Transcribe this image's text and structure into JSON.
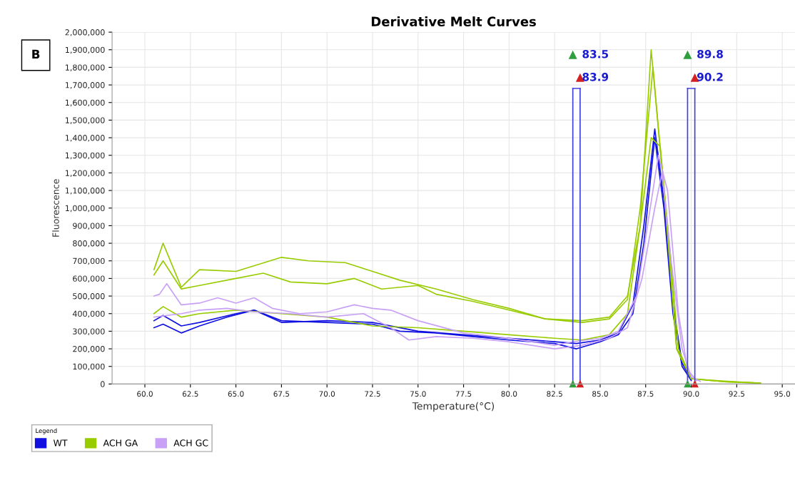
{
  "chart_data": {
    "type": "line",
    "title": "Derivative Melt Curves",
    "xlabel": "Temperature(°C)",
    "ylabel": "Fluorescence",
    "legend_title": "Legend",
    "annotations": [
      "B"
    ],
    "xlim": [
      58.2,
      95.7
    ],
    "xticks": [
      {
        "value": 60,
        "label": "60.0"
      },
      {
        "value": 62.5,
        "label": "62.5"
      },
      {
        "value": 65,
        "label": "65.0"
      },
      {
        "value": 67.5,
        "label": "67.5"
      },
      {
        "value": 70,
        "label": "70.0"
      },
      {
        "value": 72.5,
        "label": "72.5"
      },
      {
        "value": 75,
        "label": "75.0"
      },
      {
        "value": 77.5,
        "label": "77.5"
      },
      {
        "value": 80,
        "label": "80.0"
      },
      {
        "value": 82.5,
        "label": "82.5"
      },
      {
        "value": 85,
        "label": "85.0"
      },
      {
        "value": 87.5,
        "label": "87.5"
      },
      {
        "value": 90,
        "label": "90.0"
      },
      {
        "value": 92.5,
        "label": "92.5"
      },
      {
        "value": 95,
        "label": "95.0"
      }
    ],
    "ylim": [
      0,
      2000000
    ],
    "yticks": [
      {
        "value": 0,
        "label": "0"
      },
      {
        "value": 100000,
        "label": "100,000"
      },
      {
        "value": 200000,
        "label": "200,000"
      },
      {
        "value": 300000,
        "label": "300,000"
      },
      {
        "value": 400000,
        "label": "400,000"
      },
      {
        "value": 500000,
        "label": "500,000"
      },
      {
        "value": 600000,
        "label": "600,000"
      },
      {
        "value": 700000,
        "label": "700,000"
      },
      {
        "value": 800000,
        "label": "800,000"
      },
      {
        "value": 900000,
        "label": "900,000"
      },
      {
        "value": 1000000,
        "label": "1,000,000"
      },
      {
        "value": 1100000,
        "label": "1,100,000"
      },
      {
        "value": 1200000,
        "label": "1,200,000"
      },
      {
        "value": 1300000,
        "label": "1,300,000"
      },
      {
        "value": 1400000,
        "label": "1,400,000"
      },
      {
        "value": 1500000,
        "label": "1,500,000"
      },
      {
        "value": 1600000,
        "label": "1,600,000"
      },
      {
        "value": 1700000,
        "label": "1,700,000"
      },
      {
        "value": 1800000,
        "label": "1,800,000"
      },
      {
        "value": 1900000,
        "label": "1,900,000"
      },
      {
        "value": 2000000,
        "label": "2,000,000"
      }
    ],
    "grid": true,
    "legend": "bottom",
    "ref_lines": [
      {
        "axis": "x",
        "value": 83.5,
        "label": "83.5",
        "color": "#4040e0"
      },
      {
        "axis": "x",
        "value": 83.9,
        "label": "83.9",
        "color": "#4040e0"
      },
      {
        "axis": "x",
        "value": 89.8,
        "label": "89.8",
        "color": "#4040e0"
      },
      {
        "axis": "x",
        "value": 90.2,
        "label": "90.2",
        "color": "#4040e0"
      }
    ],
    "series": [
      {
        "name": "WT",
        "color": "#1010e0",
        "x": [
          60.5,
          61,
          62,
          63,
          64.5,
          66,
          67.5,
          70,
          72.5,
          74,
          76,
          78,
          80,
          82.5,
          83.7,
          85,
          86,
          86.8,
          87.4,
          88.0,
          88.5,
          89,
          89.5,
          90
        ],
        "values": [
          320000,
          340000,
          290000,
          330000,
          380000,
          420000,
          360000,
          350000,
          340000,
          300000,
          290000,
          270000,
          250000,
          230000,
          200000,
          240000,
          280000,
          400000,
          800000,
          1400000,
          1000000,
          400000,
          100000,
          20000
        ]
      },
      {
        "color": "#1010e0",
        "x": [
          60.5,
          61,
          62,
          63,
          65,
          66,
          67.5,
          70,
          72.5,
          75,
          77.5,
          80,
          82.5,
          83.7,
          85,
          86,
          86.8,
          87.4,
          88.0,
          88.5,
          89,
          89.5,
          90
        ],
        "values": [
          360000,
          390000,
          330000,
          350000,
          400000,
          420000,
          350000,
          360000,
          350000,
          300000,
          280000,
          260000,
          240000,
          230000,
          250000,
          290000,
          450000,
          900000,
          1450000,
          1050000,
          450000,
          120000,
          25000
        ]
      },
      {
        "name": "ACH GA",
        "color": "#99cc00",
        "x": [
          60.5,
          61.0,
          62.0,
          63.0,
          65,
          67.5,
          69,
          71,
          72.5,
          74,
          76,
          78,
          80,
          82,
          84,
          85.5,
          86.5,
          87.2,
          87.8,
          88.6,
          89.2,
          90,
          92,
          93.8
        ],
        "values": [
          650000,
          800000,
          550000,
          650000,
          640000,
          720000,
          700000,
          690000,
          640000,
          590000,
          540000,
          480000,
          430000,
          370000,
          360000,
          380000,
          500000,
          900000,
          1900000,
          1000000,
          200000,
          30000,
          15000,
          5000
        ]
      },
      {
        "color": "#99cc00",
        "x": [
          60.5,
          61.0,
          62,
          63,
          65,
          66.5,
          68,
          70,
          71.5,
          73,
          75,
          76,
          78,
          80,
          82,
          84,
          85.5,
          86.5,
          87.2,
          87.9,
          88.5,
          89.2,
          90,
          92,
          93.8
        ],
        "values": [
          620000,
          700000,
          540000,
          560000,
          600000,
          630000,
          580000,
          570000,
          600000,
          540000,
          560000,
          510000,
          470000,
          420000,
          370000,
          350000,
          370000,
          480000,
          1000000,
          1800000,
          1100000,
          200000,
          30000,
          12000,
          5000
        ]
      },
      {
        "color": "#99cc00",
        "x": [
          60.5,
          61.0,
          62,
          63,
          65,
          67.5,
          70,
          72.5,
          75,
          77.5,
          80,
          82.5,
          84,
          85.5,
          86.5,
          87.2,
          87.8,
          88.3,
          88.8,
          89.3,
          90,
          92,
          93.8
        ],
        "values": [
          400000,
          440000,
          380000,
          400000,
          420000,
          400000,
          380000,
          330000,
          320000,
          300000,
          280000,
          260000,
          250000,
          280000,
          400000,
          900000,
          1400000,
          1350000,
          800000,
          200000,
          30000,
          12000,
          5000
        ]
      },
      {
        "name": "ACH GC",
        "color": "#c8a0f5",
        "x": [
          60.5,
          60.8,
          61.2,
          62,
          63,
          64,
          65,
          66,
          67,
          68.5,
          70,
          71.5,
          72.5,
          73.5,
          75,
          77.5,
          80,
          82.5,
          83.5,
          85,
          86,
          87,
          87.6,
          88.2,
          88.7,
          89.3,
          89.8,
          90.3
        ],
        "values": [
          500000,
          510000,
          570000,
          450000,
          460000,
          490000,
          460000,
          490000,
          430000,
          400000,
          410000,
          450000,
          430000,
          420000,
          360000,
          290000,
          260000,
          220000,
          240000,
          260000,
          300000,
          500000,
          900000,
          1300000,
          1100000,
          400000,
          80000,
          20000
        ]
      },
      {
        "color": "#c8a0f5",
        "x": [
          60.5,
          62,
          63,
          64.5,
          66,
          68,
          70,
          72,
          73.5,
          74.5,
          76,
          78,
          80,
          82.5,
          84,
          85.5,
          86.5,
          87.3,
          88.0,
          88.4,
          88.9,
          89.5,
          90,
          90.5
        ],
        "values": [
          380000,
          400000,
          420000,
          430000,
          410000,
          400000,
          380000,
          400000,
          320000,
          250000,
          270000,
          260000,
          240000,
          200000,
          220000,
          260000,
          320000,
          600000,
          1000000,
          1200000,
          700000,
          200000,
          40000,
          15000
        ]
      }
    ]
  }
}
